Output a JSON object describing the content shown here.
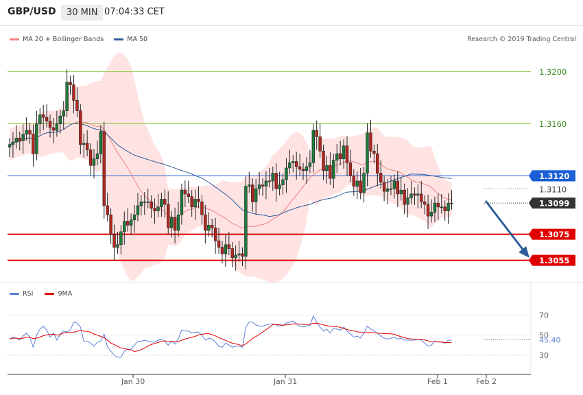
{
  "header": {
    "pair": "GBP/USD",
    "timeframe": "30 MIN",
    "time": "07:04:33 CET"
  },
  "legend": {
    "ma20": {
      "label": "MA 20 + Bollinger Bands",
      "color": "#f08080"
    },
    "ma50": {
      "label": "MA 50",
      "color": "#2f5d9a"
    },
    "rsi": {
      "label": "RSI",
      "color": "#5b7fd6"
    },
    "ma9": {
      "label": "9MA",
      "color": "#e00000"
    }
  },
  "credit": "Research © 2019 Trading Central",
  "chart_data": [
    {
      "type": "candlestick",
      "ylim": [
        1.304,
        1.3232
      ],
      "x_tick_labels": [
        "Jan 30",
        "Jan 31",
        "Feb 1",
        "Feb 2"
      ],
      "levels": [
        {
          "value": "1.3200",
          "kind": "resistance",
          "color": "#8cc63f",
          "label_color": "#3c8c1e"
        },
        {
          "value": "1.3160",
          "kind": "resistance",
          "color": "#8cc63f",
          "label_color": "#3c8c1e"
        },
        {
          "value": "1.3120",
          "kind": "pivot",
          "color": "#1a5fd6",
          "label_color": "#ffffff"
        },
        {
          "value": "1.3099",
          "kind": "last",
          "color": "#333333",
          "label_color": "#ffffff"
        },
        {
          "value": "1.3075",
          "kind": "support",
          "color": "#e00000",
          "label_color": "#ffffff"
        },
        {
          "value": "1.3055",
          "kind": "support",
          "color": "#e00000",
          "label_color": "#ffffff"
        }
      ],
      "hidden_label": "1.3110",
      "close": [
        1.3144,
        1.3146,
        1.3149,
        1.3147,
        1.3152,
        1.3155,
        1.3152,
        1.3137,
        1.316,
        1.3167,
        1.3165,
        1.3162,
        1.3157,
        1.3155,
        1.316,
        1.3166,
        1.317,
        1.3192,
        1.319,
        1.3178,
        1.317,
        1.3144,
        1.3145,
        1.314,
        1.3128,
        1.3133,
        1.3137,
        1.3154,
        1.3097,
        1.309,
        1.3075,
        1.3065,
        1.3067,
        1.3077,
        1.3085,
        1.3082,
        1.3086,
        1.309,
        1.3097,
        1.31,
        1.31,
        1.31,
        1.3095,
        1.3093,
        1.3096,
        1.3102,
        1.3098,
        1.308,
        1.3088,
        1.3078,
        1.309,
        1.3109,
        1.3106,
        1.3104,
        1.3096,
        1.3102,
        1.31,
        1.309,
        1.3078,
        1.3082,
        1.308,
        1.307,
        1.3065,
        1.306,
        1.3067,
        1.3064,
        1.3057,
        1.3059,
        1.306,
        1.3058,
        1.3112,
        1.3113,
        1.31,
        1.311,
        1.3113,
        1.3112,
        1.3116,
        1.3116,
        1.3122,
        1.311,
        1.3113,
        1.3117,
        1.3126,
        1.313,
        1.3131,
        1.3127,
        1.3125,
        1.3124,
        1.3127,
        1.313,
        1.3155,
        1.315,
        1.3139,
        1.3124,
        1.3128,
        1.3118,
        1.3132,
        1.3137,
        1.3133,
        1.3143,
        1.313,
        1.312,
        1.3112,
        1.3116,
        1.3107,
        1.3122,
        1.3153,
        1.3139,
        1.3137,
        1.3122,
        1.3115,
        1.3108,
        1.311,
        1.311,
        1.3116,
        1.3106,
        1.3109,
        1.3098,
        1.3103,
        1.3106,
        1.3105,
        1.3106,
        1.31,
        1.3098,
        1.3089,
        1.3092,
        1.3099,
        1.3096,
        1.3096,
        1.3093,
        1.3099,
        1.3099
      ],
      "rsi": {
        "levels": [
          "70",
          "50",
          "30"
        ],
        "current": "45.40",
        "values": [
          46,
          48,
          47,
          45,
          49,
          52,
          48,
          38,
          50,
          56,
          59,
          55,
          48,
          52,
          45,
          51,
          54,
          53,
          55,
          63,
          62,
          58,
          44,
          44,
          42,
          39,
          43,
          44,
          51,
          38,
          34,
          30,
          28,
          28,
          34,
          36,
          36,
          40,
          44,
          44,
          45,
          44,
          43,
          43,
          45,
          46,
          44,
          40,
          44,
          41,
          46,
          55,
          54,
          54,
          52,
          53,
          53,
          50,
          45,
          47,
          46,
          43,
          39,
          38,
          42,
          40,
          38,
          39,
          39,
          38,
          58,
          63,
          63,
          60,
          59,
          59,
          60,
          61,
          61,
          60,
          59,
          60,
          62,
          63,
          64,
          61,
          59,
          58,
          59,
          60,
          69,
          63,
          58,
          54,
          56,
          52,
          57,
          56,
          55,
          58,
          54,
          51,
          48,
          49,
          47,
          52,
          59,
          56,
          54,
          52,
          49,
          47,
          46,
          47,
          48,
          46,
          47,
          45,
          45,
          45,
          45,
          46,
          45,
          42,
          39,
          40,
          44,
          43,
          43,
          42,
          45,
          45
        ]
      }
    }
  ]
}
